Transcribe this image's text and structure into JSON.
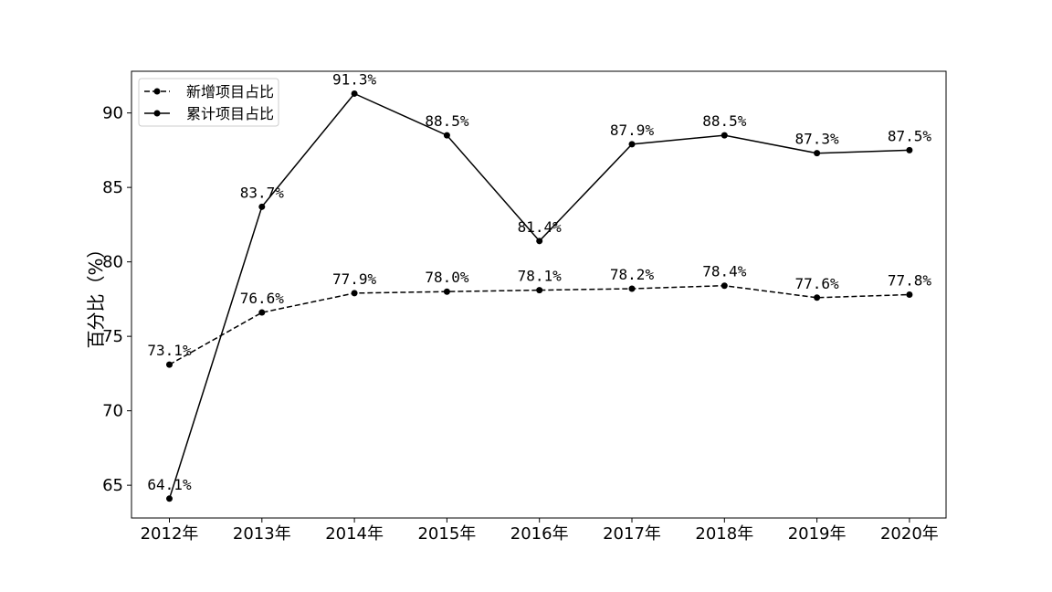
{
  "chart_data": {
    "type": "line",
    "title": "",
    "xlabel": "",
    "ylabel": "百分比（%）",
    "categories": [
      "2012年",
      "2013年",
      "2014年",
      "2015年",
      "2016年",
      "2017年",
      "2018年",
      "2019年",
      "2020年"
    ],
    "ylim": [
      62.8,
      92.8
    ],
    "yticks": [
      65,
      70,
      75,
      80,
      85,
      90
    ],
    "grid": false,
    "legend_position": "top-left",
    "series": [
      {
        "name": "新增项目占比",
        "style": "dashed",
        "color": "#000000",
        "values": [
          73.1,
          76.6,
          77.9,
          78.0,
          78.1,
          78.2,
          78.4,
          77.6,
          77.8
        ],
        "labels": [
          "73.1%",
          "76.6%",
          "77.9%",
          "78.0%",
          "78.1%",
          "78.2%",
          "78.4%",
          "77.6%",
          "77.8%"
        ]
      },
      {
        "name": "累计项目占比",
        "style": "solid",
        "color": "#000000",
        "values": [
          64.1,
          83.7,
          91.3,
          88.5,
          81.4,
          87.9,
          88.5,
          87.3,
          87.5
        ],
        "labels": [
          "64.1%",
          "83.7%",
          "91.3%",
          "88.5%",
          "81.4%",
          "87.9%",
          "88.5%",
          "87.3%",
          "87.5%"
        ]
      }
    ]
  }
}
